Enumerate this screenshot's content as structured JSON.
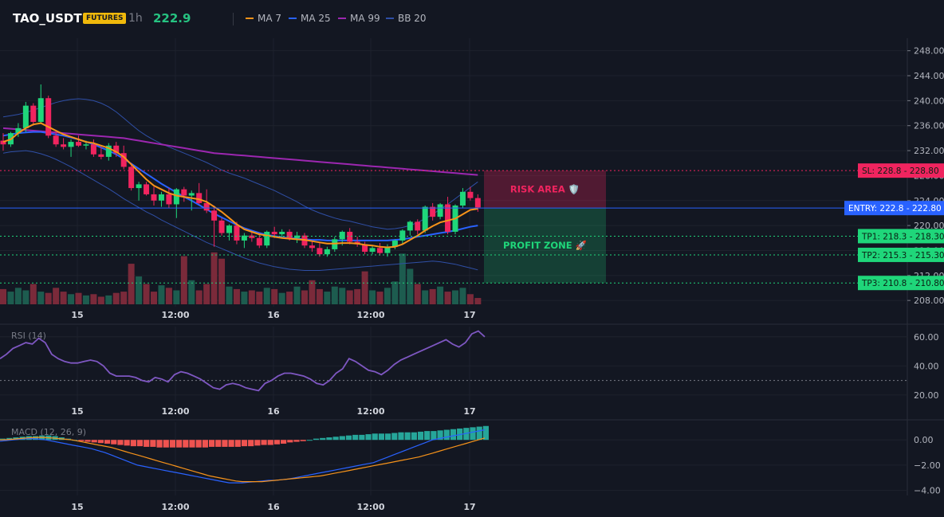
{
  "header": {
    "symbol": "TAO_USDT",
    "badge": "FUTURES",
    "timeframe": "1h",
    "last_price": "222.9",
    "legend": [
      {
        "label": "MA 7",
        "color": "#f7931a"
      },
      {
        "label": "MA 25",
        "color": "#2962ff"
      },
      {
        "label": "MA 99",
        "color": "#9c27b0"
      },
      {
        "label": "BB 20",
        "color": "#2f4fa6"
      }
    ]
  },
  "chart_data": [
    {
      "type": "candlestick",
      "x_ticks": [
        "15",
        "12:00",
        "16",
        "12:00",
        "17"
      ],
      "y_ticks": [
        "248.00",
        "244.00",
        "240.00",
        "236.00",
        "232.00",
        "228.00",
        "224.00",
        "220.00",
        "216.00",
        "212.00",
        "208.00"
      ],
      "ylim": [
        207,
        250
      ],
      "candles": [
        [
          233.6,
          234.8,
          232.0,
          233.0
        ],
        [
          233.0,
          235.0,
          232.6,
          234.8
        ],
        [
          234.8,
          236.4,
          234.2,
          235.6
        ],
        [
          235.6,
          239.8,
          235.0,
          239.2
        ],
        [
          239.2,
          239.6,
          236.0,
          236.6
        ],
        [
          236.6,
          242.6,
          236.4,
          240.4
        ],
        [
          240.4,
          240.8,
          234.0,
          234.4
        ],
        [
          234.4,
          235.0,
          232.6,
          233.0
        ],
        [
          233.0,
          234.0,
          232.2,
          232.6
        ],
        [
          232.6,
          233.8,
          231.0,
          233.4
        ],
        [
          233.4,
          234.4,
          232.6,
          232.8
        ],
        [
          232.8,
          233.6,
          232.2,
          233.0
        ],
        [
          233.0,
          233.8,
          231.0,
          231.4
        ],
        [
          231.4,
          232.6,
          230.6,
          231.0
        ],
        [
          231.0,
          233.2,
          230.4,
          232.8
        ],
        [
          232.8,
          233.4,
          231.0,
          231.6
        ],
        [
          231.6,
          232.8,
          229.0,
          229.4
        ],
        [
          229.4,
          230.0,
          225.6,
          226.0
        ],
        [
          226.0,
          227.0,
          224.0,
          226.6
        ],
        [
          226.6,
          227.0,
          224.8,
          225.0
        ],
        [
          225.0,
          226.2,
          223.2,
          224.0
        ],
        [
          224.0,
          225.4,
          223.0,
          225.0
        ],
        [
          225.0,
          226.0,
          222.8,
          223.4
        ],
        [
          223.4,
          226.0,
          221.2,
          225.8
        ],
        [
          225.8,
          226.2,
          223.8,
          224.8
        ],
        [
          224.8,
          225.6,
          222.4,
          225.2
        ],
        [
          225.2,
          226.8,
          223.4,
          223.6
        ],
        [
          223.6,
          225.8,
          222.0,
          222.4
        ],
        [
          222.4,
          223.2,
          216.6,
          220.8
        ],
        [
          220.8,
          221.2,
          218.4,
          218.8
        ],
        [
          218.8,
          220.2,
          217.6,
          220.0
        ],
        [
          220.0,
          220.6,
          217.0,
          217.6
        ],
        [
          217.6,
          218.8,
          216.4,
          218.4
        ],
        [
          218.4,
          219.0,
          217.4,
          218.0
        ],
        [
          218.0,
          218.8,
          216.4,
          216.8
        ],
        [
          216.8,
          219.2,
          216.4,
          219.0
        ],
        [
          219.0,
          219.8,
          218.0,
          218.6
        ],
        [
          218.6,
          219.4,
          218.0,
          219.0
        ],
        [
          219.0,
          219.4,
          217.6,
          218.0
        ],
        [
          218.0,
          219.0,
          217.2,
          218.4
        ],
        [
          218.4,
          218.8,
          216.4,
          216.8
        ],
        [
          216.8,
          217.6,
          215.8,
          216.4
        ],
        [
          216.4,
          217.2,
          215.0,
          215.4
        ],
        [
          215.4,
          216.6,
          215.0,
          216.2
        ],
        [
          216.2,
          218.2,
          215.8,
          217.8
        ],
        [
          217.8,
          219.2,
          216.8,
          219.0
        ],
        [
          219.0,
          219.6,
          217.0,
          217.4
        ],
        [
          217.4,
          218.2,
          216.6,
          217.0
        ],
        [
          217.0,
          217.4,
          215.4,
          215.8
        ],
        [
          215.8,
          216.8,
          215.4,
          216.4
        ],
        [
          216.4,
          217.2,
          215.2,
          215.6
        ],
        [
          215.6,
          217.0,
          215.0,
          216.6
        ],
        [
          216.6,
          217.8,
          216.2,
          217.6
        ],
        [
          217.6,
          219.4,
          217.0,
          219.2
        ],
        [
          219.2,
          220.8,
          218.4,
          220.6
        ],
        [
          220.6,
          221.0,
          218.6,
          219.2
        ],
        [
          219.2,
          223.2,
          218.8,
          223.0
        ],
        [
          223.0,
          223.6,
          220.8,
          221.4
        ],
        [
          221.4,
          223.6,
          221.0,
          223.4
        ],
        [
          223.4,
          224.6,
          218.6,
          219.0
        ],
        [
          219.0,
          223.4,
          218.6,
          223.2
        ],
        [
          223.2,
          226.0,
          222.8,
          225.4
        ],
        [
          225.4,
          226.2,
          224.0,
          224.4
        ],
        [
          224.4,
          225.0,
          222.2,
          222.9
        ]
      ],
      "ma7": [
        233.4,
        233.8,
        234.8,
        235.6,
        236.2,
        236.4,
        235.8,
        235.2,
        234.6,
        234.2,
        233.8,
        233.4,
        233.2,
        232.8,
        232.4,
        231.8,
        231.0,
        229.8,
        228.6,
        227.4,
        226.4,
        225.8,
        225.2,
        224.8,
        224.6,
        224.4,
        224.2,
        223.8,
        223.0,
        222.2,
        221.2,
        220.2,
        219.4,
        219.0,
        218.6,
        218.4,
        218.2,
        218.0,
        217.9,
        217.8,
        217.7,
        217.5,
        217.3,
        217.1,
        217.1,
        217.2,
        217.2,
        217.1,
        216.9,
        216.8,
        216.6,
        216.5,
        216.6,
        217.0,
        217.7,
        218.4,
        219.2,
        219.9,
        220.5,
        220.8,
        221.1,
        221.8,
        222.5,
        222.7
      ],
      "ma25": [
        234.4,
        234.6,
        234.8,
        234.9,
        235.0,
        235.0,
        234.8,
        234.6,
        234.4,
        234.1,
        233.8,
        233.4,
        233.0,
        232.5,
        232.0,
        231.4,
        230.7,
        229.9,
        229.1,
        228.3,
        227.5,
        226.7,
        226.0,
        225.3,
        224.6,
        224.0,
        223.3,
        222.6,
        221.9,
        221.3,
        220.7,
        220.1,
        219.6,
        219.2,
        218.8,
        218.5,
        218.3,
        218.1,
        218.0,
        217.9,
        217.8,
        217.7,
        217.7,
        217.6,
        217.6,
        217.6,
        217.6,
        217.6,
        217.6,
        217.6,
        217.6,
        217.6,
        217.7,
        217.8,
        218.0,
        218.2,
        218.4,
        218.6,
        218.8,
        219.0,
        219.2,
        219.5,
        219.8,
        220.0
      ],
      "ma99": [
        235.6,
        235.5,
        235.4,
        235.3,
        235.2,
        235.1,
        235.0,
        234.9,
        234.8,
        234.7,
        234.6,
        234.5,
        234.4,
        234.3,
        234.2,
        234.1,
        234.0,
        233.8,
        233.6,
        233.4,
        233.2,
        233.0,
        232.8,
        232.6,
        232.4,
        232.2,
        232.0,
        231.8,
        231.6,
        231.5,
        231.4,
        231.3,
        231.2,
        231.1,
        231.0,
        230.9,
        230.8,
        230.7,
        230.6,
        230.5,
        230.4,
        230.3,
        230.2,
        230.1,
        230.0,
        229.9,
        229.8,
        229.7,
        229.6,
        229.5,
        229.4,
        229.3,
        229.2,
        229.1,
        229.0,
        228.9,
        228.8,
        228.7,
        228.6,
        228.5,
        228.4,
        228.3,
        228.2,
        228.1
      ],
      "bb_upper": [
        237.4,
        237.6,
        237.8,
        238.1,
        238.5,
        238.9,
        239.3,
        239.7,
        240.0,
        240.2,
        240.3,
        240.2,
        240.0,
        239.6,
        239.0,
        238.2,
        237.2,
        236.2,
        235.2,
        234.4,
        233.7,
        233.1,
        232.6,
        232.1,
        231.6,
        231.1,
        230.6,
        230.1,
        229.5,
        228.9,
        228.4,
        228.0,
        227.6,
        227.1,
        226.6,
        226.1,
        225.6,
        225.0,
        224.4,
        223.8,
        223.1,
        222.5,
        222.0,
        221.6,
        221.2,
        220.9,
        220.7,
        220.4,
        220.1,
        219.8,
        219.6,
        219.4,
        219.5,
        219.7,
        220.0,
        220.5,
        221.1,
        221.8,
        222.6,
        223.4,
        224.3,
        225.2,
        226.1,
        227.0
      ],
      "bb_lower": [
        231.6,
        231.8,
        231.9,
        232.0,
        231.8,
        231.5,
        231.1,
        230.6,
        230.0,
        229.4,
        228.7,
        228.0,
        227.3,
        226.6,
        225.9,
        225.1,
        224.3,
        223.6,
        222.9,
        222.2,
        221.6,
        220.9,
        220.3,
        219.7,
        219.1,
        218.5,
        217.9,
        217.3,
        216.8,
        216.3,
        215.8,
        215.3,
        214.8,
        214.4,
        214.0,
        213.7,
        213.4,
        213.2,
        213.0,
        212.9,
        212.8,
        212.8,
        212.8,
        212.9,
        213.0,
        213.1,
        213.2,
        213.3,
        213.4,
        213.5,
        213.6,
        213.7,
        213.8,
        213.9,
        214.0,
        214.1,
        214.2,
        214.3,
        214.2,
        214.0,
        213.8,
        213.5,
        213.2,
        212.9
      ],
      "volume": [
        1.2,
        1.0,
        1.3,
        1.1,
        1.6,
        1.0,
        0.9,
        1.3,
        1.0,
        0.8,
        0.9,
        0.7,
        0.8,
        0.6,
        0.7,
        0.9,
        1.0,
        3.2,
        2.2,
        1.6,
        1.0,
        1.5,
        1.3,
        1.1,
        3.8,
        1.9,
        1.1,
        1.6,
        4.1,
        3.6,
        1.4,
        1.2,
        1.0,
        1.1,
        1.0,
        1.3,
        1.2,
        0.9,
        1.0,
        1.4,
        1.1,
        1.9,
        1.2,
        1.0,
        1.4,
        1.3,
        1.1,
        1.2,
        2.6,
        1.1,
        1.0,
        1.3,
        1.8,
        4.0,
        2.8,
        1.6,
        1.1,
        1.2,
        1.4,
        1.0,
        1.1,
        1.3,
        0.8,
        0.5
      ],
      "levels": [
        {
          "label": "SL: 228.8",
          "value": "228.80",
          "price": 228.8,
          "color": "#f0245f"
        },
        {
          "label": "ENTRY: 222.8",
          "value": "222.80",
          "price": 222.8,
          "color": "#2962ff"
        },
        {
          "label": "TP1: 218.3",
          "value": "218.30",
          "price": 218.3,
          "color": "#1fd67a"
        },
        {
          "label": "TP2: 215.3",
          "value": "215.30",
          "price": 215.3,
          "color": "#1fd67a"
        },
        {
          "label": "TP3: 210.8",
          "value": "210.80",
          "price": 210.8,
          "color": "#1fd67a"
        }
      ],
      "zones": [
        {
          "label": "RISK AREA 🛡️",
          "top": 228.8,
          "bottom": 222.8,
          "color": "#f0245f"
        },
        {
          "label": "PROFIT ZONE 🚀",
          "top": 222.8,
          "bottom": 210.8,
          "color": "#1fd67a"
        }
      ]
    },
    {
      "type": "line",
      "title": "RSI (14)",
      "y_ticks": [
        "60.00",
        "40.00",
        "20.00"
      ],
      "ylim": [
        15,
        67
      ],
      "reference_line": 30,
      "values": [
        45,
        48,
        52,
        54,
        56,
        55,
        59,
        56,
        48,
        45,
        43,
        42,
        42,
        43,
        44,
        43,
        40,
        35,
        33,
        33,
        33,
        32,
        30,
        29,
        32,
        31,
        29,
        34,
        36,
        35,
        33,
        31,
        28,
        25,
        24,
        27,
        28,
        27,
        25,
        24,
        23,
        28,
        30,
        33,
        35,
        35,
        34,
        33,
        31,
        28,
        27,
        30,
        35,
        38,
        45,
        43,
        40,
        37,
        36,
        34,
        37,
        41,
        44,
        46,
        48,
        50,
        52,
        54,
        56,
        58,
        55,
        53,
        56,
        62,
        64,
        60
      ]
    },
    {
      "type": "bar",
      "title": "MACD (12, 26, 9)",
      "y_ticks": [
        "0.00",
        "−2.00",
        "−4.00"
      ],
      "ylim": [
        -4.4,
        1.4
      ],
      "histogram": [
        0.1,
        0.15,
        0.2,
        0.25,
        0.3,
        0.3,
        0.35,
        0.35,
        0.3,
        0.2,
        0.1,
        0.0,
        -0.1,
        -0.15,
        -0.2,
        -0.25,
        -0.3,
        -0.35,
        -0.4,
        -0.45,
        -0.5,
        -0.5,
        -0.55,
        -0.55,
        -0.6,
        -0.6,
        -0.6,
        -0.6,
        -0.6,
        -0.6,
        -0.6,
        -0.6,
        -0.55,
        -0.55,
        -0.55,
        -0.55,
        -0.55,
        -0.5,
        -0.5,
        -0.45,
        -0.4,
        -0.4,
        -0.35,
        -0.3,
        -0.2,
        -0.15,
        -0.1,
        0.0,
        0.1,
        0.15,
        0.2,
        0.25,
        0.3,
        0.35,
        0.4,
        0.4,
        0.45,
        0.5,
        0.5,
        0.5,
        0.55,
        0.6,
        0.6,
        0.6,
        0.65,
        0.7,
        0.7,
        0.75,
        0.8,
        0.85,
        0.9,
        0.95,
        1.0,
        1.05,
        1.1
      ],
      "macd": [
        -0.1,
        -0.05,
        0.0,
        0.05,
        0.1,
        0.1,
        0.05,
        0.0,
        -0.1,
        -0.2,
        -0.3,
        -0.4,
        -0.5,
        -0.6,
        -0.7,
        -0.85,
        -1.0,
        -1.2,
        -1.4,
        -1.6,
        -1.8,
        -2.0,
        -2.1,
        -2.2,
        -2.3,
        -2.4,
        -2.5,
        -2.6,
        -2.7,
        -2.8,
        -2.9,
        -3.0,
        -3.1,
        -3.2,
        -3.3,
        -3.4,
        -3.4,
        -3.4,
        -3.35,
        -3.3,
        -3.25,
        -3.2,
        -3.2,
        -3.15,
        -3.1,
        -3.0,
        -2.9,
        -2.8,
        -2.7,
        -2.6,
        -2.5,
        -2.4,
        -2.3,
        -2.2,
        -2.1,
        -2.0,
        -1.9,
        -1.8,
        -1.6,
        -1.4,
        -1.2,
        -1.0,
        -0.8,
        -0.6,
        -0.4,
        -0.2,
        0.0,
        0.1,
        0.2,
        0.3,
        0.4,
        0.5,
        0.6,
        0.7,
        0.8
      ],
      "signal": [
        0.0,
        0.02,
        0.05,
        0.1,
        0.15,
        0.18,
        0.2,
        0.18,
        0.15,
        0.1,
        0.05,
        0.0,
        -0.1,
        -0.2,
        -0.3,
        -0.4,
        -0.5,
        -0.6,
        -0.75,
        -0.9,
        -1.05,
        -1.2,
        -1.35,
        -1.5,
        -1.65,
        -1.8,
        -1.95,
        -2.1,
        -2.25,
        -2.4,
        -2.55,
        -2.7,
        -2.85,
        -2.95,
        -3.05,
        -3.15,
        -3.25,
        -3.3,
        -3.3,
        -3.3,
        -3.3,
        -3.25,
        -3.2,
        -3.15,
        -3.1,
        -3.05,
        -3.0,
        -2.95,
        -2.9,
        -2.85,
        -2.75,
        -2.65,
        -2.55,
        -2.45,
        -2.35,
        -2.25,
        -2.15,
        -2.05,
        -1.95,
        -1.85,
        -1.75,
        -1.65,
        -1.55,
        -1.45,
        -1.35,
        -1.2,
        -1.05,
        -0.9,
        -0.75,
        -0.6,
        -0.45,
        -0.3,
        -0.15,
        0.0,
        0.15
      ]
    }
  ]
}
